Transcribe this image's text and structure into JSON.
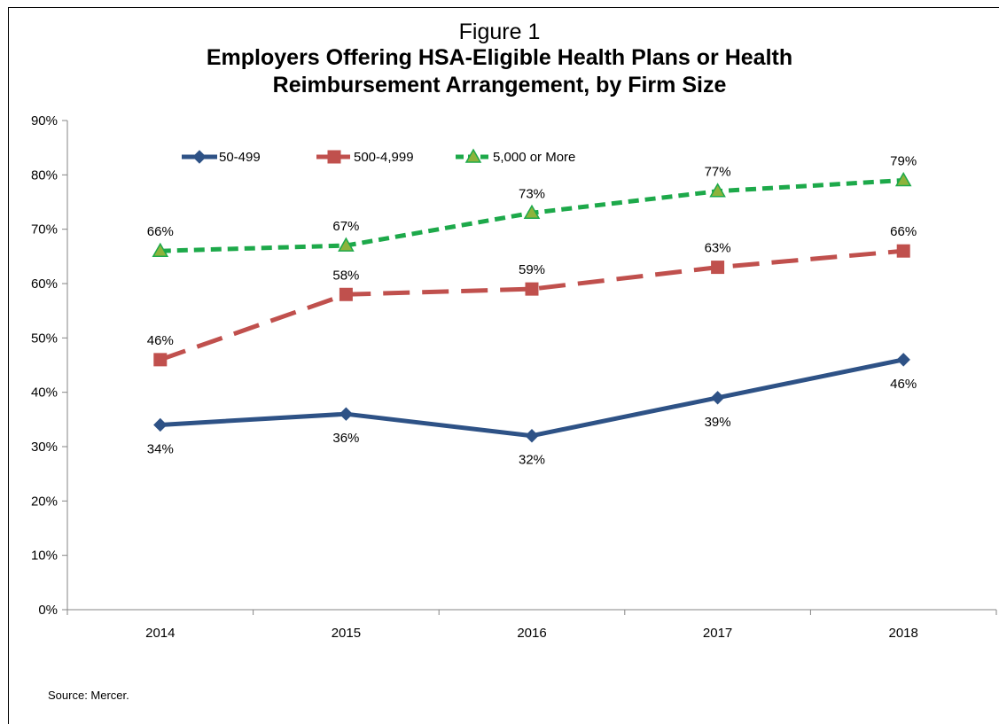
{
  "figure": {
    "label": "Figure 1",
    "title": "Employers Offering HSA-Eligible Health Plans or Health Reimbursement Arrangement, by Firm Size",
    "source": "Source: Mercer."
  },
  "chart_data": {
    "type": "line",
    "categories": [
      "2014",
      "2015",
      "2016",
      "2017",
      "2018"
    ],
    "ylim": [
      0,
      90
    ],
    "yticks": [
      0,
      10,
      20,
      30,
      40,
      50,
      60,
      70,
      80,
      90
    ],
    "ytick_labels": [
      "0%",
      "10%",
      "20%",
      "30%",
      "40%",
      "50%",
      "60%",
      "70%",
      "80%",
      "90%"
    ],
    "xlabel": "",
    "ylabel": "",
    "grid": false,
    "legend_position": "top",
    "series": [
      {
        "name": "50-499",
        "values": [
          34,
          36,
          32,
          39,
          46
        ],
        "labels": [
          "34%",
          "36%",
          "32%",
          "39%",
          "46%"
        ],
        "color": "#2E5286",
        "dash": "solid",
        "marker": "diamond",
        "label_position": "below"
      },
      {
        "name": "500-4,999",
        "values": [
          46,
          58,
          59,
          63,
          66
        ],
        "labels": [
          "46%",
          "58%",
          "59%",
          "63%",
          "66%"
        ],
        "color": "#C0504D",
        "dash": "long-dash",
        "marker": "square",
        "label_position": "above"
      },
      {
        "name": "5,000 or More",
        "values": [
          66,
          67,
          73,
          77,
          79
        ],
        "labels": [
          "66%",
          "67%",
          "73%",
          "77%",
          "79%"
        ],
        "color": "#1DA94A",
        "dash": "short-dash",
        "marker": "triangle",
        "marker_fill": "#8DB33C",
        "label_position": "above"
      }
    ]
  }
}
